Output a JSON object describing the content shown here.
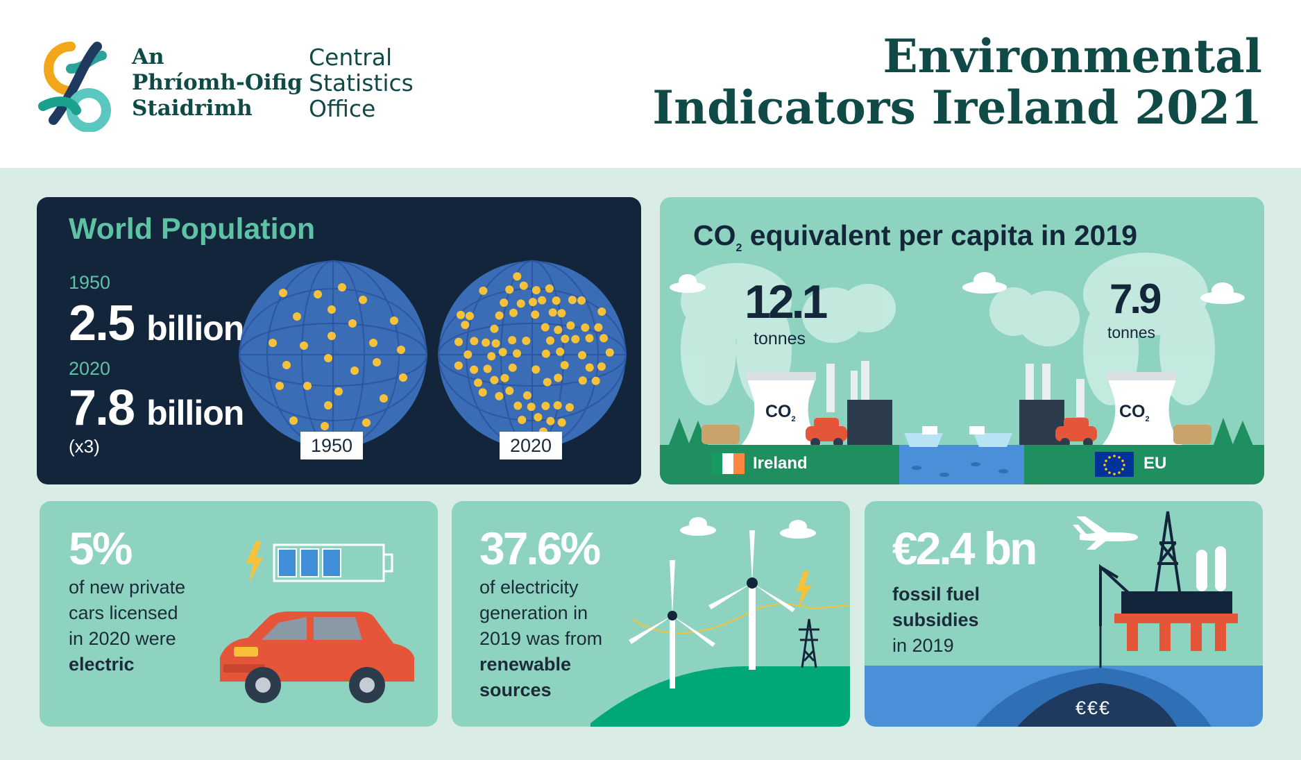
{
  "header": {
    "logo_irish": [
      "An",
      "Phríomh-Oifig",
      "Staidrimh"
    ],
    "logo_english": [
      "Central",
      "Statistics",
      "Office"
    ],
    "title_lines": [
      "Environmental",
      "Indicators Ireland 2021"
    ]
  },
  "world_population": {
    "title": "World Population",
    "year1": "1950",
    "value1": "2.5",
    "unit1": "billion",
    "year2": "2020",
    "value2": "7.8",
    "unit2": "billion",
    "multiplier": "(x3)",
    "globe1_label": "1950",
    "globe2_label": "2020"
  },
  "co2": {
    "title": "CO",
    "title_sub": "2",
    "title_rest": " equivalent per capita in 2019",
    "ireland_value": "12.1",
    "ireland_unit": "tonnes",
    "eu_value": "7.9",
    "eu_unit": "tonnes",
    "tower_label": "CO",
    "tower_sub": "2",
    "ireland_label": "Ireland",
    "eu_label": "EU"
  },
  "ev": {
    "value": "5%",
    "text_lines": [
      "of new private",
      "cars licensed",
      "in 2020 were"
    ],
    "text_bold": "electric"
  },
  "renewable": {
    "value": "37.6%",
    "text_lines": [
      "of electricity",
      "generation in",
      "2019 was from"
    ],
    "text_bold_lines": [
      "renewable",
      "sources"
    ]
  },
  "fossil": {
    "value": "€2.4 bn",
    "text_bold_lines": [
      "fossil fuel",
      "subsidies"
    ],
    "text_line": "in 2019",
    "money": "€€€"
  },
  "colors": {
    "teal_dark": "#0f4a46",
    "mint": "#8dd3c0",
    "navy": "#13253b",
    "globe": "#3a6db5",
    "dot": "#f7c23a",
    "car": "#e5553a",
    "green": "#1f8f5f",
    "water": "#4a90d9"
  }
}
